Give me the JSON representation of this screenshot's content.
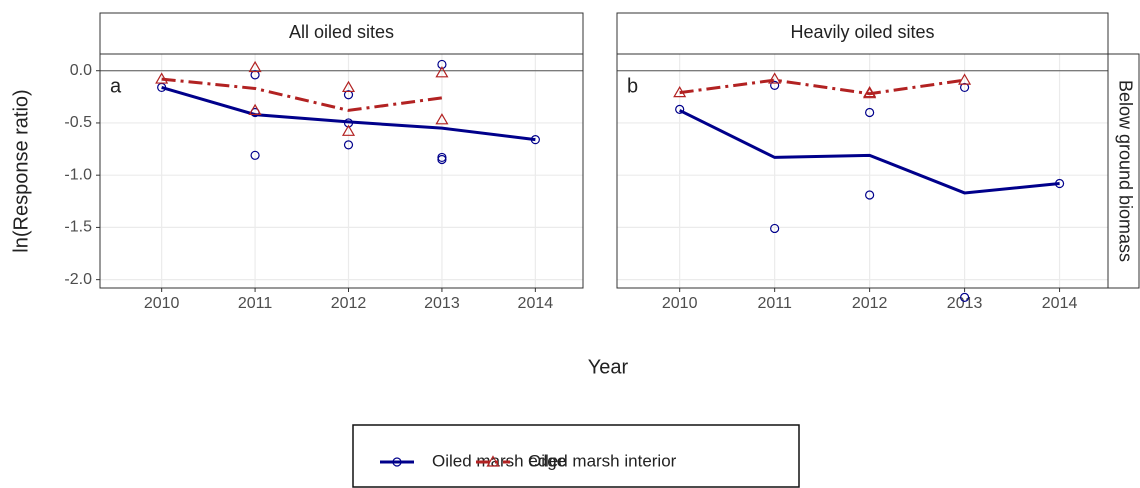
{
  "y_label": "ln(Response ratio)",
  "x_label": "Year",
  "row_strip": "Below ground biomass",
  "legend": {
    "position": "bottom",
    "entries": [
      {
        "name": "Oiled marsh edge",
        "color": "#00008b",
        "marker": "circle",
        "dash": "solid"
      },
      {
        "name": "Oiled marsh interior",
        "color": "#b22222",
        "marker": "triangle",
        "dash": "dashdot"
      }
    ]
  },
  "chart_data": [
    {
      "type": "line",
      "title": "All oiled sites",
      "panel_label": "a",
      "x": [
        2010,
        2011,
        2012,
        2013,
        2014
      ],
      "xlim": [
        2009.34,
        2014.51
      ],
      "xticks": [
        2010,
        2011,
        2012,
        2013,
        2014
      ],
      "ylim": [
        -2.08,
        0.16
      ],
      "yticks": [
        {
          "value": 0,
          "label": "0.0"
        },
        -0.5,
        {
          "value": -1,
          "label": "-1.0"
        },
        -1.5,
        {
          "value": -2,
          "label": "-2.0"
        }
      ],
      "hline": 0,
      "grid": true,
      "series": [
        {
          "values": [
            -0.16,
            -0.42,
            -0.49,
            -0.55,
            -0.66
          ],
          "points_x": [
            2010,
            2011,
            2011,
            2011,
            2012,
            2012,
            2012,
            2013,
            2013,
            2013,
            2014
          ],
          "points_y": [
            -0.16,
            -0.04,
            -0.4,
            -0.81,
            -0.23,
            -0.5,
            -0.71,
            0.06,
            -0.83,
            -0.85,
            -0.66
          ]
        },
        {
          "values": [
            -0.08,
            -0.17,
            -0.38,
            -0.26,
            null
          ],
          "points_x": [
            2010,
            2011,
            2011,
            2012,
            2012,
            2013,
            2013
          ],
          "points_y": [
            -0.08,
            0.03,
            -0.38,
            -0.16,
            -0.58,
            -0.02,
            -0.47
          ]
        }
      ]
    },
    {
      "type": "line",
      "title": "Heavily oiled sites",
      "panel_label": "b",
      "x": [
        2010,
        2011,
        2012,
        2013,
        2014
      ],
      "xlim": [
        2009.34,
        2014.51
      ],
      "xticks": [
        2010,
        2011,
        2012,
        2013,
        2014
      ],
      "ylim": [
        -2.08,
        0.16
      ],
      "yticks": [
        {
          "value": 0,
          "label": "0.0"
        },
        -0.5,
        {
          "value": -1,
          "label": "-1.0"
        },
        -1.5,
        {
          "value": -2,
          "label": "-2.0"
        }
      ],
      "hline": 0,
      "grid": true,
      "series": [
        {
          "values": [
            -0.38,
            -0.83,
            -0.81,
            -1.17,
            -1.08
          ],
          "points_x": [
            2010,
            2011,
            2011,
            2012,
            2012,
            2013,
            2013,
            2014
          ],
          "points_y": [
            -0.37,
            -0.14,
            -1.51,
            -0.4,
            -1.19,
            -0.16,
            -2.17,
            -1.08
          ]
        },
        {
          "values": [
            -0.21,
            -0.09,
            -0.22,
            -0.09,
            null
          ],
          "points_x": [
            2010,
            2011,
            2012,
            2012,
            2013
          ],
          "points_y": [
            -0.21,
            -0.08,
            -0.21,
            -0.22,
            -0.09
          ]
        }
      ]
    }
  ]
}
